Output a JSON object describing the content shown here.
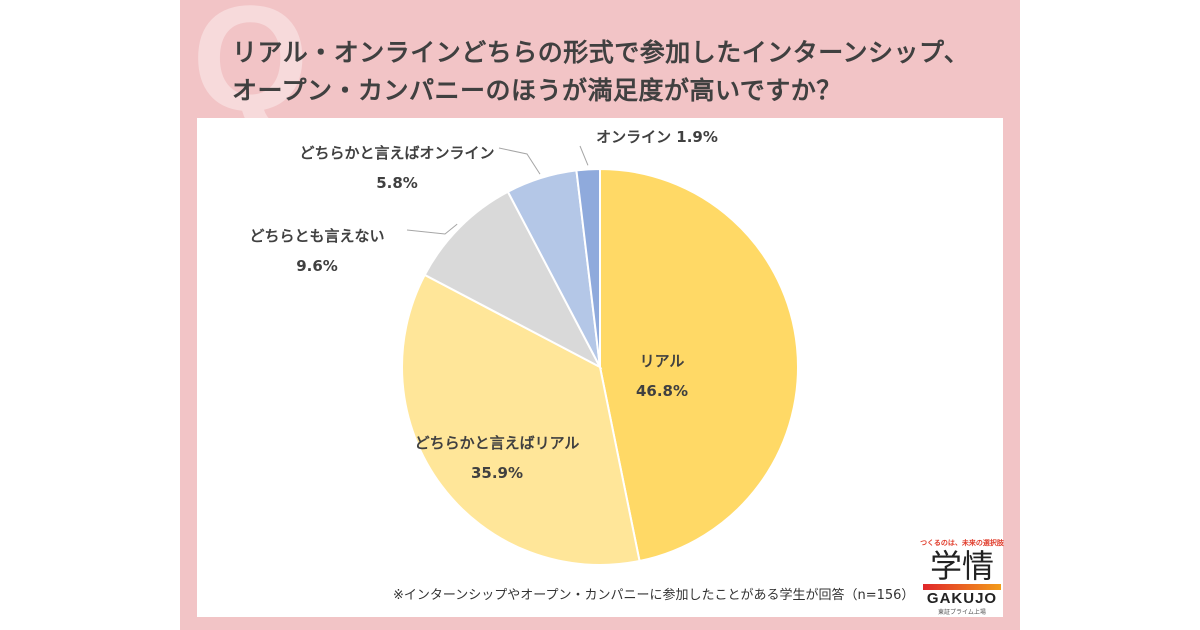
{
  "title_lines": [
    "リアル・オンラインどちらの形式で参加したインターンシップ、",
    "オープン・カンパニーのほうが満足度が高いですか？"
  ],
  "decor_letter": "Q",
  "footnote": "※インターンシップやオープン・カンパニーに参加したことがある学生が回答（n=156）",
  "logo": {
    "tagline": "つくるのは、未来の選択肢",
    "kanji": "学情",
    "english": "GAKUJO",
    "sub": "東証プライム上場"
  },
  "colors": {
    "panel": "#f2c4c6",
    "text": "#404040"
  },
  "chart_data": {
    "type": "pie",
    "start_angle": "12 o'clock, clockwise",
    "slices": [
      {
        "label": "リアル",
        "value": 46.8,
        "value_label": "46.8%",
        "color": "#FFD966"
      },
      {
        "label": "どちらかと言えばリアル",
        "value": 35.9,
        "value_label": "35.9%",
        "color": "#FFE699"
      },
      {
        "label": "どちらとも言えない",
        "value": 9.6,
        "value_label": "9.6%",
        "color": "#D9D9D9"
      },
      {
        "label": "どちらかと言えばオンライン",
        "value": 5.8,
        "value_label": "5.8%",
        "color": "#B4C7E7"
      },
      {
        "label": "オンライン",
        "value": 1.9,
        "value_label": "1.9%",
        "color": "#8FAADC"
      }
    ]
  }
}
